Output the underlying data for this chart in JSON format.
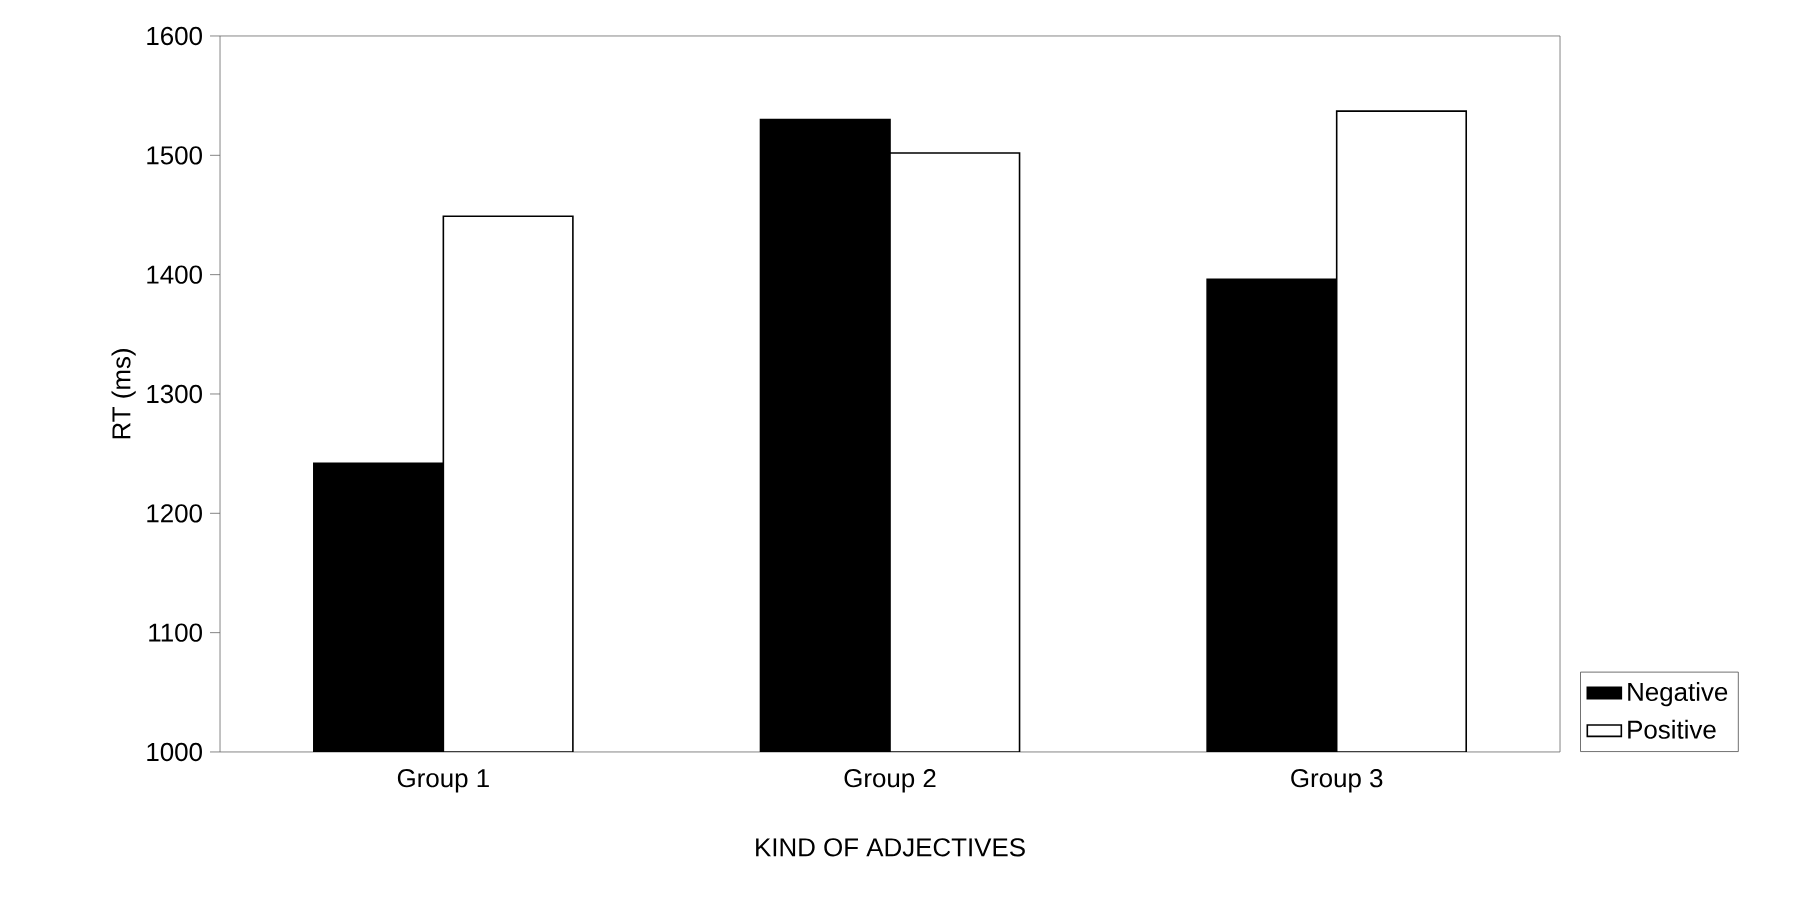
{
  "chart_data": {
    "type": "bar",
    "xlabel": "KIND OF ADJECTIVES",
    "ylabel": "RT (ms)",
    "categories": [
      "Group 1",
      "Group 2",
      "Group 3"
    ],
    "series": [
      {
        "name": "Negative",
        "color": "#000000",
        "values": [
          1242,
          1530,
          1396
        ]
      },
      {
        "name": "Positive",
        "color": "#ffffff",
        "values": [
          1449,
          1502,
          1537
        ]
      }
    ],
    "ylim": [
      1000,
      1600
    ],
    "yticks": [
      1000,
      1100,
      1200,
      1300,
      1400,
      1500,
      1600
    ],
    "grid": false,
    "legend": "right"
  }
}
